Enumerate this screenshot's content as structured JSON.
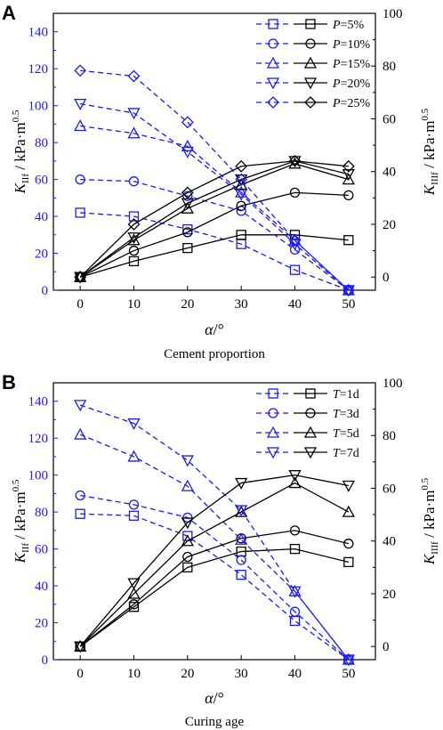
{
  "colors": {
    "blue": "#1a1aff",
    "black": "#000000"
  },
  "markers": [
    "square",
    "circle",
    "triangle-up",
    "triangle-down",
    "diamond"
  ],
  "chart_data": [
    {
      "type": "line",
      "panel_label": "A",
      "caption": "Cement proportion",
      "xlabel": "α/°",
      "ylabel_left": "K_IIf / kPa·m^0.5",
      "ylabel_right": "K_IIIf / kPa·m^0.5",
      "x": [
        0,
        10,
        20,
        30,
        40,
        50
      ],
      "x_ticks": [
        "0",
        "10",
        "20",
        "30",
        "40",
        "50"
      ],
      "xlim": [
        -5,
        55
      ],
      "ylim_left": [
        0,
        150
      ],
      "ylim_right": [
        -5,
        100
      ],
      "y_ticks_left": [
        "0",
        "20",
        "40",
        "60",
        "80",
        "100",
        "120",
        "140"
      ],
      "y_ticks_right": [
        "0",
        "20",
        "40",
        "60",
        "80",
        "100"
      ],
      "grid": false,
      "legend_position": "top-right",
      "series": [
        {
          "name": "P=5%",
          "legend_var": "P",
          "legend_val": "=5%",
          "kII": [
            42,
            40,
            33,
            25,
            11,
            0
          ],
          "kIII": [
            0,
            6,
            11,
            16,
            16,
            14
          ]
        },
        {
          "name": "P=10%",
          "legend_var": "P",
          "legend_val": "=10%",
          "kII": [
            60,
            59,
            51,
            43,
            22,
            0
          ],
          "kIII": [
            0,
            10,
            17,
            27,
            32,
            31
          ]
        },
        {
          "name": "P=15%",
          "legend_var": "P",
          "legend_val": "=15%",
          "kII": [
            89,
            85,
            78,
            53,
            27,
            0
          ],
          "kIII": [
            0,
            14,
            26,
            35,
            43,
            37
          ]
        },
        {
          "name": "P=20%",
          "legend_var": "P",
          "legend_val": "=20%",
          "kII": [
            101,
            96,
            75,
            52,
            25,
            0
          ],
          "kIII": [
            0,
            15,
            28,
            37,
            44,
            39
          ]
        },
        {
          "name": "P=25%",
          "legend_var": "P",
          "legend_val": "=25%",
          "kII": [
            119,
            116,
            91,
            60,
            27,
            0
          ],
          "kIII": [
            0,
            20,
            32,
            42,
            44,
            42
          ]
        }
      ]
    },
    {
      "type": "line",
      "panel_label": "B",
      "caption": "Curing age",
      "xlabel": "α/°",
      "ylabel_left": "K_IIf / kPa·m^0.5",
      "ylabel_right": "K_IIIf / kPa·m^0.5",
      "x": [
        0,
        10,
        20,
        30,
        40,
        50
      ],
      "x_ticks": [
        "0",
        "10",
        "20",
        "30",
        "40",
        "50"
      ],
      "xlim": [
        -5,
        55
      ],
      "ylim_left": [
        0,
        150
      ],
      "ylim_right": [
        -5,
        100
      ],
      "y_ticks_left": [
        "0",
        "20",
        "40",
        "60",
        "80",
        "100",
        "120",
        "140"
      ],
      "y_ticks_right": [
        "0",
        "20",
        "40",
        "60",
        "80",
        "100"
      ],
      "grid": false,
      "legend_position": "top-right",
      "series": [
        {
          "name": "T=1d",
          "legend_var": "T",
          "legend_val": "=1d",
          "kII": [
            79,
            78,
            67,
            46,
            21,
            0
          ],
          "kIII": [
            0,
            15,
            30,
            36,
            37,
            32
          ]
        },
        {
          "name": "T=3d",
          "legend_var": "T",
          "legend_val": "=3d",
          "kII": [
            89,
            84,
            77,
            54,
            26,
            0
          ],
          "kIII": [
            0,
            16,
            34,
            41,
            44,
            39
          ]
        },
        {
          "name": "T=5d",
          "legend_var": "T",
          "legend_val": "=5d",
          "kII": [
            122,
            110,
            94,
            65,
            37,
            0
          ],
          "kIII": [
            0,
            20,
            40,
            51,
            62,
            51
          ]
        },
        {
          "name": "T=7d",
          "legend_var": "T",
          "legend_val": "=7d",
          "kII": [
            138,
            128,
            108,
            81,
            37,
            0
          ],
          "kIII": [
            0,
            24,
            47,
            62,
            65,
            61
          ]
        }
      ]
    }
  ]
}
